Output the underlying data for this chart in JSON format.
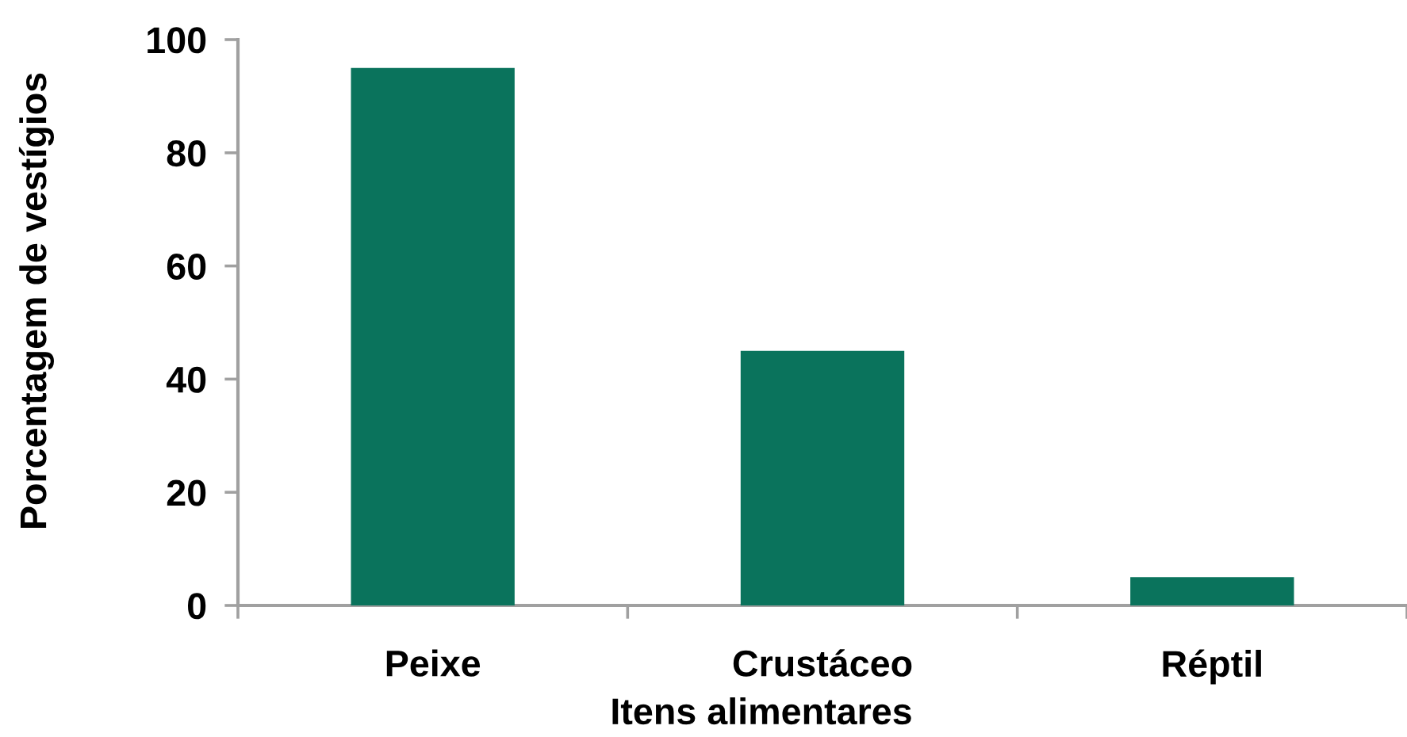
{
  "chart_data": {
    "type": "bar",
    "xlabel": "Itens alimentares",
    "ylabel": "Porcentagem de vestígios",
    "categories": [
      "Peixe",
      "Crustáceo",
      "Réptil"
    ],
    "values": [
      95,
      45,
      5
    ],
    "color": "#0a735c",
    "ylim": [
      0,
      100
    ],
    "yticks": [
      0,
      20,
      40,
      60,
      80,
      100
    ],
    "grid": false
  }
}
